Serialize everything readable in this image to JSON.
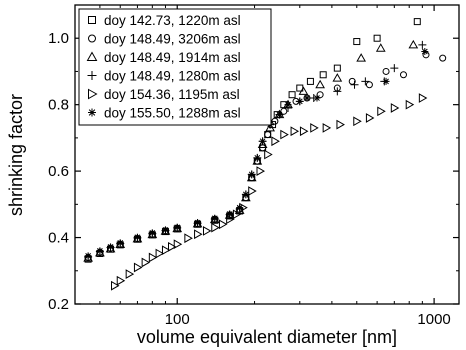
{
  "chart_data": {
    "type": "scatter",
    "xlabel": "volume equivalent diameter [nm]",
    "ylabel": "shrinking factor",
    "xscale": "log",
    "xlim": [
      40,
      1250
    ],
    "ylim": [
      0.2,
      1.1
    ],
    "xticks": [
      {
        "value": 100,
        "label": "100"
      },
      {
        "value": 1000,
        "label": "1000"
      }
    ],
    "yticks": [
      {
        "value": 0.2,
        "label": "0.2"
      },
      {
        "value": 0.4,
        "label": "0.4"
      },
      {
        "value": 0.6,
        "label": "0.6"
      },
      {
        "value": 0.8,
        "label": "0.8"
      },
      {
        "value": 1.0,
        "label": "1.0"
      }
    ],
    "legend_position": "top-left",
    "grid": false,
    "series": [
      {
        "name": "doy 142.73, 1220m asl",
        "marker": "square",
        "x": [
          45,
          50,
          55,
          60,
          70,
          80,
          90,
          100,
          120,
          140,
          160,
          175,
          185,
          195,
          205,
          215,
          225,
          235,
          245,
          260,
          280,
          300,
          330,
          370,
          420,
          500,
          600,
          860
        ],
        "y": [
          0.335,
          0.352,
          0.365,
          0.378,
          0.395,
          0.408,
          0.418,
          0.426,
          0.44,
          0.452,
          0.465,
          0.48,
          0.52,
          0.58,
          0.63,
          0.67,
          0.71,
          0.74,
          0.77,
          0.8,
          0.83,
          0.85,
          0.87,
          0.89,
          0.91,
          0.99,
          1.0,
          1.05
        ]
      },
      {
        "name": "doy 148.49, 3206m asl",
        "marker": "circle",
        "x": [
          45,
          50,
          55,
          60,
          70,
          80,
          90,
          100,
          120,
          140,
          160,
          175,
          185,
          195,
          205,
          215,
          225,
          240,
          260,
          290,
          320,
          360,
          420,
          480,
          560,
          650,
          760,
          930,
          1080
        ],
        "y": [
          0.34,
          0.356,
          0.368,
          0.38,
          0.397,
          0.41,
          0.42,
          0.428,
          0.442,
          0.455,
          0.468,
          0.485,
          0.52,
          0.58,
          0.63,
          0.67,
          0.71,
          0.75,
          0.78,
          0.81,
          0.82,
          0.83,
          0.85,
          0.87,
          0.86,
          0.9,
          0.89,
          0.95,
          0.94
        ]
      },
      {
        "name": "doy 148.49, 1914m asl",
        "marker": "triangle",
        "x": [
          45,
          50,
          55,
          60,
          70,
          80,
          90,
          100,
          120,
          140,
          160,
          175,
          185,
          195,
          205,
          215,
          230,
          250,
          270,
          310,
          360,
          420,
          520,
          620,
          830
        ],
        "y": [
          0.338,
          0.354,
          0.366,
          0.379,
          0.396,
          0.409,
          0.419,
          0.427,
          0.441,
          0.454,
          0.467,
          0.482,
          0.52,
          0.58,
          0.63,
          0.68,
          0.73,
          0.77,
          0.8,
          0.84,
          0.86,
          0.88,
          0.94,
          0.97,
          0.98
        ]
      },
      {
        "name": "doy 148.49, 1280m asl",
        "marker": "plus",
        "x": [
          45,
          50,
          55,
          60,
          70,
          80,
          90,
          100,
          120,
          140,
          160,
          175,
          185,
          195,
          205,
          215,
          230,
          250,
          270,
          300,
          340,
          420,
          490,
          540,
          640,
          700,
          900
        ],
        "y": [
          0.342,
          0.358,
          0.37,
          0.382,
          0.399,
          0.412,
          0.421,
          0.429,
          0.443,
          0.456,
          0.469,
          0.486,
          0.53,
          0.59,
          0.64,
          0.69,
          0.74,
          0.77,
          0.79,
          0.81,
          0.82,
          0.84,
          0.86,
          0.87,
          0.87,
          0.91,
          0.98
        ]
      },
      {
        "name": "doy 154.36, 1195m asl",
        "marker": "triangle-right",
        "x": [
          57,
          60,
          65,
          70,
          75,
          80,
          85,
          90,
          95,
          100,
          110,
          120,
          130,
          140,
          150,
          160,
          170,
          180,
          195,
          210,
          225,
          240,
          260,
          285,
          310,
          340,
          380,
          430,
          500,
          560,
          620,
          700,
          800,
          900
        ],
        "y": [
          0.255,
          0.27,
          0.29,
          0.31,
          0.325,
          0.34,
          0.352,
          0.362,
          0.372,
          0.38,
          0.398,
          0.41,
          0.42,
          0.43,
          0.44,
          0.455,
          0.47,
          0.49,
          0.54,
          0.6,
          0.65,
          0.69,
          0.71,
          0.72,
          0.72,
          0.73,
          0.73,
          0.74,
          0.75,
          0.76,
          0.78,
          0.79,
          0.8,
          0.82
        ]
      },
      {
        "name": "doy 155.50, 1288m asl",
        "marker": "asterisk",
        "x": [
          45,
          50,
          55,
          60,
          70,
          80,
          90,
          100,
          120,
          140,
          160,
          175,
          185,
          195,
          205,
          215,
          230,
          250,
          270,
          300,
          320,
          350,
          650,
          920
        ],
        "y": [
          0.345,
          0.36,
          0.372,
          0.384,
          0.401,
          0.414,
          0.423,
          0.431,
          0.445,
          0.458,
          0.471,
          0.49,
          0.53,
          0.59,
          0.64,
          0.69,
          0.74,
          0.77,
          0.8,
          0.81,
          0.82,
          0.82,
          0.87,
          0.96
        ]
      }
    ]
  }
}
